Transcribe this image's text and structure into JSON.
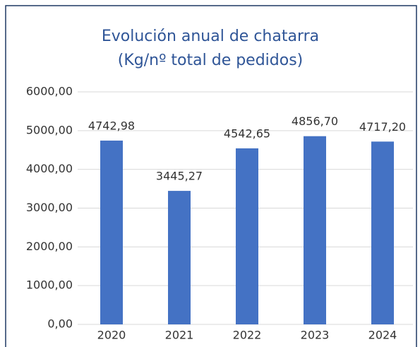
{
  "chart_data": {
    "type": "bar",
    "title": [
      "Evolución anual de chatarra",
      "(Kg/nº total de pedidos)"
    ],
    "categories": [
      "2020",
      "2021",
      "2022",
      "2023",
      "2024"
    ],
    "values": [
      4742.98,
      3445.27,
      4542.65,
      4856.7,
      4717.2
    ],
    "value_labels": [
      "4742,98",
      "3445,27",
      "4542,65",
      "4856,70",
      "4717,20"
    ],
    "color": "#4472c4",
    "ylim": [
      0,
      6000
    ],
    "yticks": [
      {
        "value": 0,
        "label": "0,00"
      },
      {
        "value": 1000,
        "label": "1000,00"
      },
      {
        "value": 2000,
        "label": "2000,00"
      },
      {
        "value": 3000,
        "label": "3000,00"
      },
      {
        "value": 4000,
        "label": "4000,00"
      },
      {
        "value": 5000,
        "label": "5000,00"
      },
      {
        "value": 6000,
        "label": "6000,00"
      }
    ],
    "grid": true
  }
}
